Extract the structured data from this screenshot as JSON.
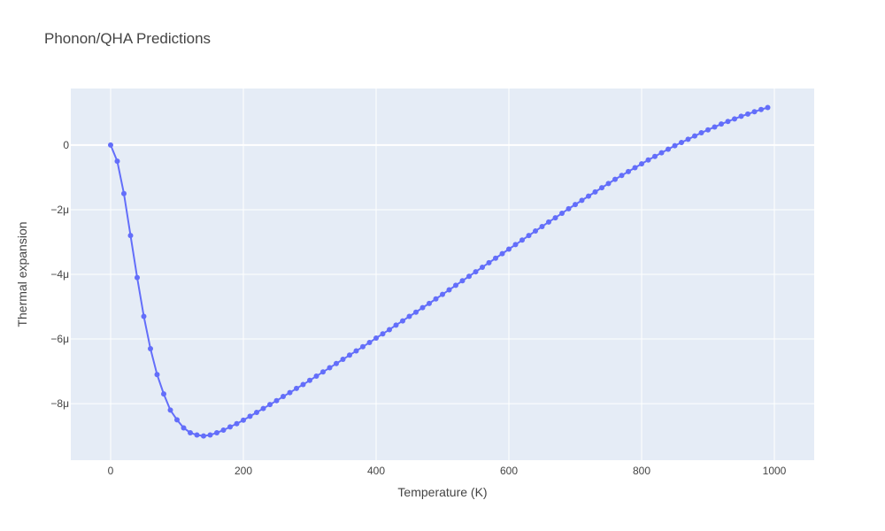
{
  "chart_data": {
    "type": "line",
    "title": "Phonon/QHA Predictions",
    "xlabel": "Temperature (K)",
    "ylabel": "Thermal expansion",
    "xlim": [
      -60,
      1060
    ],
    "ylim": [
      -9.75e-06,
      1.75e-06
    ],
    "x_ticks": [
      0,
      200,
      400,
      600,
      800,
      1000
    ],
    "x_tick_labels": [
      "0",
      "200",
      "400",
      "600",
      "800",
      "1000"
    ],
    "y_ticks": [
      0,
      -2e-06,
      -4e-06,
      -6e-06,
      -8e-06
    ],
    "y_tick_labels": [
      "0",
      "−2μ",
      "−4μ",
      "−6μ",
      "−8μ"
    ],
    "grid": true,
    "colors": {
      "plot_bg": "#e5ecf6",
      "grid": "#ffffff",
      "series": "#636efa"
    },
    "series": [
      {
        "x": [
          0,
          10,
          20,
          30,
          40,
          50,
          60,
          70,
          80,
          90,
          100,
          110,
          120,
          130,
          140,
          150,
          160,
          170,
          180,
          190,
          200,
          210,
          220,
          230,
          240,
          250,
          260,
          270,
          280,
          290,
          300,
          310,
          320,
          330,
          340,
          350,
          360,
          370,
          380,
          390,
          400,
          410,
          420,
          430,
          440,
          450,
          460,
          470,
          480,
          490,
          500,
          510,
          520,
          530,
          540,
          550,
          560,
          570,
          580,
          590,
          600,
          610,
          620,
          630,
          640,
          650,
          660,
          670,
          680,
          690,
          700,
          710,
          720,
          730,
          740,
          750,
          760,
          770,
          780,
          790,
          800,
          810,
          820,
          830,
          840,
          850,
          860,
          870,
          880,
          890,
          900,
          910,
          920,
          930,
          940,
          950,
          960,
          970,
          980,
          990
        ],
        "y": [
          0,
          -5e-07,
          -1.5e-06,
          -2.8e-06,
          -4.1e-06,
          -5.3e-06,
          -6.3e-06,
          -7.1e-06,
          -7.7e-06,
          -8.2e-06,
          -8.5e-06,
          -8.75e-06,
          -8.9e-06,
          -8.97e-06,
          -9e-06,
          -8.97e-06,
          -8.9e-06,
          -8.82e-06,
          -8.72e-06,
          -8.62e-06,
          -8.51e-06,
          -8.39e-06,
          -8.27e-06,
          -8.15e-06,
          -8.03e-06,
          -7.91e-06,
          -7.78e-06,
          -7.66e-06,
          -7.53e-06,
          -7.41e-06,
          -7.28e-06,
          -7.15e-06,
          -7.02e-06,
          -6.89e-06,
          -6.76e-06,
          -6.63e-06,
          -6.5e-06,
          -6.37e-06,
          -6.24e-06,
          -6.11e-06,
          -5.97e-06,
          -5.84e-06,
          -5.71e-06,
          -5.57e-06,
          -5.44e-06,
          -5.3e-06,
          -5.17e-06,
          -5.03e-06,
          -4.9e-06,
          -4.76e-06,
          -4.62e-06,
          -4.48e-06,
          -4.34e-06,
          -4.2e-06,
          -4.06e-06,
          -3.92e-06,
          -3.78e-06,
          -3.64e-06,
          -3.5e-06,
          -3.36e-06,
          -3.22e-06,
          -3.08e-06,
          -2.94e-06,
          -2.8e-06,
          -2.66e-06,
          -2.52e-06,
          -2.38e-06,
          -2.25e-06,
          -2.11e-06,
          -1.97e-06,
          -1.84e-06,
          -1.71e-06,
          -1.58e-06,
          -1.45e-06,
          -1.32e-06,
          -1.19e-06,
          -1.06e-06,
          -9.4e-07,
          -8.2e-07,
          -7e-07,
          -5.8e-07,
          -4.6e-07,
          -3.5e-07,
          -2.4e-07,
          -1.3e-07,
          -2e-08,
          8e-08,
          1.8e-07,
          2.8e-07,
          3.8e-07,
          4.7e-07,
          5.6e-07,
          6.5e-07,
          7.3e-07,
          8.1e-07,
          8.9e-07,
          9.6e-07,
          1.03e-06,
          1.1e-06,
          1.16e-06
        ]
      }
    ]
  }
}
